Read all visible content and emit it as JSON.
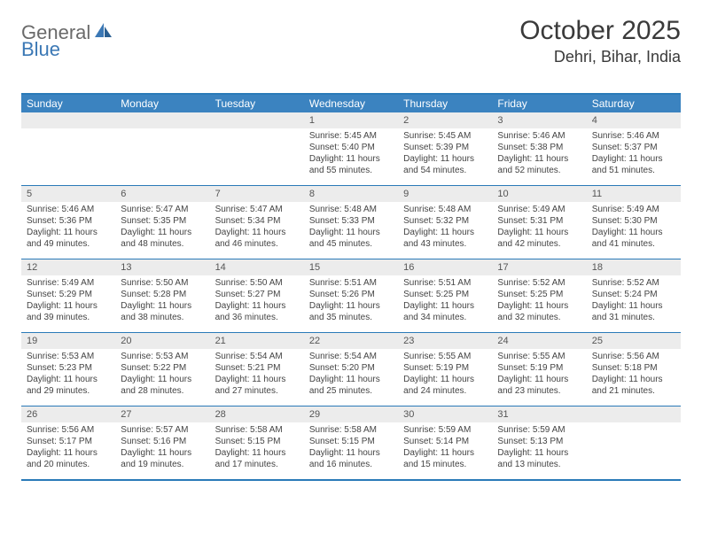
{
  "logo": {
    "part1": "General",
    "part2": "Blue"
  },
  "title": "October 2025",
  "location": "Dehri, Bihar, India",
  "colors": {
    "header_bg": "#3b83c0",
    "border": "#2a7ab8",
    "daybar_bg": "#ececec",
    "logo_gray": "#6a6a6a",
    "logo_blue": "#3b78b5"
  },
  "day_names": [
    "Sunday",
    "Monday",
    "Tuesday",
    "Wednesday",
    "Thursday",
    "Friday",
    "Saturday"
  ],
  "weeks": [
    [
      {
        "day": "",
        "lines": []
      },
      {
        "day": "",
        "lines": []
      },
      {
        "day": "",
        "lines": []
      },
      {
        "day": "1",
        "lines": [
          "Sunrise: 5:45 AM",
          "Sunset: 5:40 PM",
          "Daylight: 11 hours and 55 minutes."
        ]
      },
      {
        "day": "2",
        "lines": [
          "Sunrise: 5:45 AM",
          "Sunset: 5:39 PM",
          "Daylight: 11 hours and 54 minutes."
        ]
      },
      {
        "day": "3",
        "lines": [
          "Sunrise: 5:46 AM",
          "Sunset: 5:38 PM",
          "Daylight: 11 hours and 52 minutes."
        ]
      },
      {
        "day": "4",
        "lines": [
          "Sunrise: 5:46 AM",
          "Sunset: 5:37 PM",
          "Daylight: 11 hours and 51 minutes."
        ]
      }
    ],
    [
      {
        "day": "5",
        "lines": [
          "Sunrise: 5:46 AM",
          "Sunset: 5:36 PM",
          "Daylight: 11 hours and 49 minutes."
        ]
      },
      {
        "day": "6",
        "lines": [
          "Sunrise: 5:47 AM",
          "Sunset: 5:35 PM",
          "Daylight: 11 hours and 48 minutes."
        ]
      },
      {
        "day": "7",
        "lines": [
          "Sunrise: 5:47 AM",
          "Sunset: 5:34 PM",
          "Daylight: 11 hours and 46 minutes."
        ]
      },
      {
        "day": "8",
        "lines": [
          "Sunrise: 5:48 AM",
          "Sunset: 5:33 PM",
          "Daylight: 11 hours and 45 minutes."
        ]
      },
      {
        "day": "9",
        "lines": [
          "Sunrise: 5:48 AM",
          "Sunset: 5:32 PM",
          "Daylight: 11 hours and 43 minutes."
        ]
      },
      {
        "day": "10",
        "lines": [
          "Sunrise: 5:49 AM",
          "Sunset: 5:31 PM",
          "Daylight: 11 hours and 42 minutes."
        ]
      },
      {
        "day": "11",
        "lines": [
          "Sunrise: 5:49 AM",
          "Sunset: 5:30 PM",
          "Daylight: 11 hours and 41 minutes."
        ]
      }
    ],
    [
      {
        "day": "12",
        "lines": [
          "Sunrise: 5:49 AM",
          "Sunset: 5:29 PM",
          "Daylight: 11 hours and 39 minutes."
        ]
      },
      {
        "day": "13",
        "lines": [
          "Sunrise: 5:50 AM",
          "Sunset: 5:28 PM",
          "Daylight: 11 hours and 38 minutes."
        ]
      },
      {
        "day": "14",
        "lines": [
          "Sunrise: 5:50 AM",
          "Sunset: 5:27 PM",
          "Daylight: 11 hours and 36 minutes."
        ]
      },
      {
        "day": "15",
        "lines": [
          "Sunrise: 5:51 AM",
          "Sunset: 5:26 PM",
          "Daylight: 11 hours and 35 minutes."
        ]
      },
      {
        "day": "16",
        "lines": [
          "Sunrise: 5:51 AM",
          "Sunset: 5:25 PM",
          "Daylight: 11 hours and 34 minutes."
        ]
      },
      {
        "day": "17",
        "lines": [
          "Sunrise: 5:52 AM",
          "Sunset: 5:25 PM",
          "Daylight: 11 hours and 32 minutes."
        ]
      },
      {
        "day": "18",
        "lines": [
          "Sunrise: 5:52 AM",
          "Sunset: 5:24 PM",
          "Daylight: 11 hours and 31 minutes."
        ]
      }
    ],
    [
      {
        "day": "19",
        "lines": [
          "Sunrise: 5:53 AM",
          "Sunset: 5:23 PM",
          "Daylight: 11 hours and 29 minutes."
        ]
      },
      {
        "day": "20",
        "lines": [
          "Sunrise: 5:53 AM",
          "Sunset: 5:22 PM",
          "Daylight: 11 hours and 28 minutes."
        ]
      },
      {
        "day": "21",
        "lines": [
          "Sunrise: 5:54 AM",
          "Sunset: 5:21 PM",
          "Daylight: 11 hours and 27 minutes."
        ]
      },
      {
        "day": "22",
        "lines": [
          "Sunrise: 5:54 AM",
          "Sunset: 5:20 PM",
          "Daylight: 11 hours and 25 minutes."
        ]
      },
      {
        "day": "23",
        "lines": [
          "Sunrise: 5:55 AM",
          "Sunset: 5:19 PM",
          "Daylight: 11 hours and 24 minutes."
        ]
      },
      {
        "day": "24",
        "lines": [
          "Sunrise: 5:55 AM",
          "Sunset: 5:19 PM",
          "Daylight: 11 hours and 23 minutes."
        ]
      },
      {
        "day": "25",
        "lines": [
          "Sunrise: 5:56 AM",
          "Sunset: 5:18 PM",
          "Daylight: 11 hours and 21 minutes."
        ]
      }
    ],
    [
      {
        "day": "26",
        "lines": [
          "Sunrise: 5:56 AM",
          "Sunset: 5:17 PM",
          "Daylight: 11 hours and 20 minutes."
        ]
      },
      {
        "day": "27",
        "lines": [
          "Sunrise: 5:57 AM",
          "Sunset: 5:16 PM",
          "Daylight: 11 hours and 19 minutes."
        ]
      },
      {
        "day": "28",
        "lines": [
          "Sunrise: 5:58 AM",
          "Sunset: 5:15 PM",
          "Daylight: 11 hours and 17 minutes."
        ]
      },
      {
        "day": "29",
        "lines": [
          "Sunrise: 5:58 AM",
          "Sunset: 5:15 PM",
          "Daylight: 11 hours and 16 minutes."
        ]
      },
      {
        "day": "30",
        "lines": [
          "Sunrise: 5:59 AM",
          "Sunset: 5:14 PM",
          "Daylight: 11 hours and 15 minutes."
        ]
      },
      {
        "day": "31",
        "lines": [
          "Sunrise: 5:59 AM",
          "Sunset: 5:13 PM",
          "Daylight: 11 hours and 13 minutes."
        ]
      },
      {
        "day": "",
        "lines": []
      }
    ]
  ]
}
